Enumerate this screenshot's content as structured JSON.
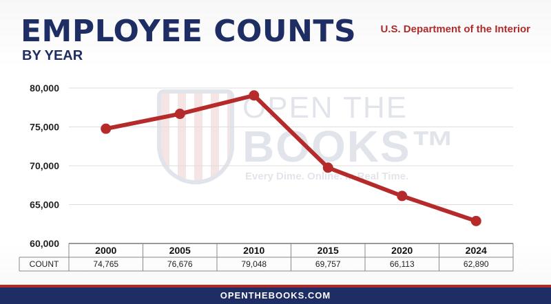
{
  "header": {
    "title": "EMPLOYEE COUNTS",
    "subtitle": "BY YEAR",
    "agency": "U.S. Department of the Interior"
  },
  "watermark": {
    "line1": "OPEN THE",
    "line2": "BOOKS™",
    "tagline": "Every Dime. Online. In Real Time."
  },
  "footer": {
    "site": "OPENTHEBOOKS.COM"
  },
  "colors": {
    "navy": "#1e2d63",
    "red": "#b02a2a",
    "line": "#b52a2a"
  },
  "chart_data": {
    "type": "line",
    "categories": [
      "2000",
      "2005",
      "2010",
      "2015",
      "2020",
      "2024"
    ],
    "values": [
      74765,
      76676,
      79048,
      69757,
      66113,
      62890
    ],
    "value_labels": [
      "74,765",
      "76,676",
      "79,048",
      "69,757",
      "66,113",
      "62,890"
    ],
    "row_label": "COUNT",
    "ylim": [
      60000,
      80000
    ],
    "yticks": [
      60000,
      65000,
      70000,
      75000,
      80000
    ],
    "ytick_labels": [
      "60,000",
      "65,000",
      "70,000",
      "75,000",
      "80,000"
    ],
    "grid": true
  }
}
